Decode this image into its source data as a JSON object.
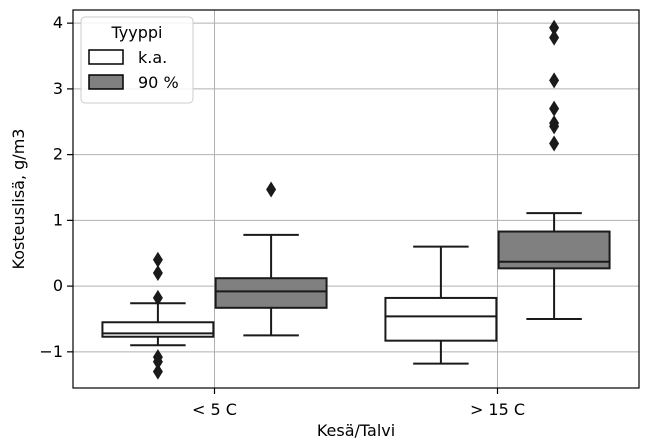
{
  "chart_data": {
    "type": "box",
    "xlabel": "Kesä/Talvi",
    "ylabel": "Kosteuslisä, g/m3",
    "ylim": [
      -1.55,
      4.2
    ],
    "yticks": [
      -1,
      0,
      1,
      2,
      3,
      4
    ],
    "ytick_labels": [
      "−1",
      "0",
      "1",
      "2",
      "3",
      "4"
    ],
    "categories": [
      "< 5 C",
      "> 15 C"
    ],
    "grid": true,
    "legend": {
      "title": "Tyyppi",
      "placement": "top-left",
      "entries": [
        "k.a.",
        "90 %"
      ]
    },
    "series": [
      {
        "name": "k.a.",
        "color": "#ffffff",
        "boxes": [
          {
            "category": "< 5 C",
            "whisker_low": -0.9,
            "q1": -0.77,
            "median": -0.72,
            "q3": -0.55,
            "whisker_high": -0.26,
            "outliers": [
              0.4,
              0.2,
              -0.18,
              -1.08,
              -1.15,
              -1.3
            ]
          },
          {
            "category": "> 15 C",
            "whisker_low": -1.18,
            "q1": -0.83,
            "median": -0.46,
            "q3": -0.18,
            "whisker_high": 0.6,
            "outliers": []
          }
        ]
      },
      {
        "name": "90 %",
        "color": "#808080",
        "boxes": [
          {
            "category": "< 5 C",
            "whisker_low": -0.75,
            "q1": -0.33,
            "median": -0.08,
            "q3": 0.12,
            "whisker_high": 0.78,
            "outliers": [
              1.47
            ]
          },
          {
            "category": "> 15 C",
            "whisker_low": -0.5,
            "q1": 0.27,
            "median": 0.37,
            "q3": 0.83,
            "whisker_high": 1.11,
            "outliers": [
              2.17,
              2.43,
              2.48,
              2.7,
              3.13,
              3.78,
              3.93
            ]
          }
        ]
      }
    ]
  }
}
